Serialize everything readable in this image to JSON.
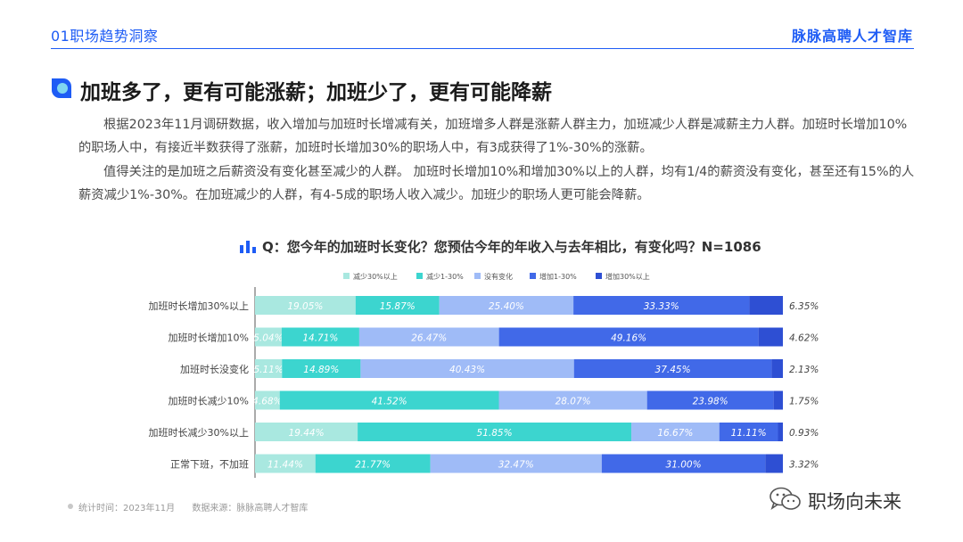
{
  "header": {
    "section_label": "01职场趋势洞察",
    "brand": "脉脉高聘人才智库"
  },
  "headline": "加班多了，更有可能涨薪；加班少了，更有可能降薪",
  "paragraphs": [
    "根据2023年11月调研数据，收入增加与加班时长增减有关，加班增多人群是涨薪人群主力，加班减少人群是减薪主力人群。加班时长增加10%的职场人中，有接近半数获得了涨薪，加班时长增加30%的职场人中，有3成获得了1%-30%的涨薪。",
    "值得关注的是加班之后薪资没有变化甚至减少的人群。 加班时长增加10%和增加30%以上的人群，均有1/4的薪资没有变化，甚至还有15%的人薪资减少1%-30%。在加班减少的人群，有4-5成的职场人收入减少。加班少的职场人更可能会降薪。"
  ],
  "colors": {
    "accent": "#1e5cf5",
    "series": [
      "#a9e8e0",
      "#3cd5cf",
      "#9fbbf7",
      "#4169e8",
      "#2e4fd3"
    ]
  },
  "chart_data": {
    "type": "bar",
    "orientation": "horizontal",
    "stacked": true,
    "title": "Q：您今年的加班时长变化？您预估今年的年收入与去年相比，有变化吗？N=1086",
    "categories": [
      "加班时长增加30%以上",
      "加班时长增加10%",
      "加班时长没变化",
      "加班时长减少10%",
      "加班时长减少30%以上",
      "正常下班，不加班"
    ],
    "series": [
      {
        "name": "减少30%以上",
        "values": [
          19.05,
          5.04,
          5.11,
          4.68,
          19.44,
          11.44
        ],
        "labels": [
          "19.05%",
          "5.04%",
          "5.11%",
          "4.68%",
          "19.44%",
          "11.44%"
        ]
      },
      {
        "name": "减少1-30%",
        "values": [
          15.87,
          14.71,
          14.89,
          41.52,
          51.85,
          21.77
        ],
        "labels": [
          "15.87%",
          "14.71%",
          "14.89%",
          "41.52%",
          "51.85%",
          "21.77%"
        ]
      },
      {
        "name": "没有变化",
        "values": [
          25.4,
          26.47,
          40.43,
          28.07,
          16.67,
          32.47
        ],
        "labels": [
          "25.40%",
          "26.47%",
          "40.43%",
          "28.07%",
          "16.67%",
          "32.47%"
        ]
      },
      {
        "name": "增加1-30%",
        "values": [
          33.33,
          49.16,
          37.45,
          23.98,
          11.11,
          31.0
        ],
        "labels": [
          "33.33%",
          "49.16%",
          "37.45%",
          "23.98%",
          "11.11%",
          "31.00%"
        ]
      },
      {
        "name": "增加30%以上",
        "values": [
          6.35,
          4.62,
          2.13,
          1.75,
          0.93,
          3.32
        ],
        "labels": [
          "6.35%",
          "4.62%",
          "2.13%",
          "1.75%",
          "0.93%",
          "3.32%"
        ]
      }
    ],
    "xlim": [
      0,
      100
    ],
    "legend": "top",
    "grid": false
  },
  "footer": {
    "stat_time": "统计时间：2023年11月",
    "source": "数据来源：脉脉高聘人才智库"
  },
  "watermark": "职场向未来"
}
